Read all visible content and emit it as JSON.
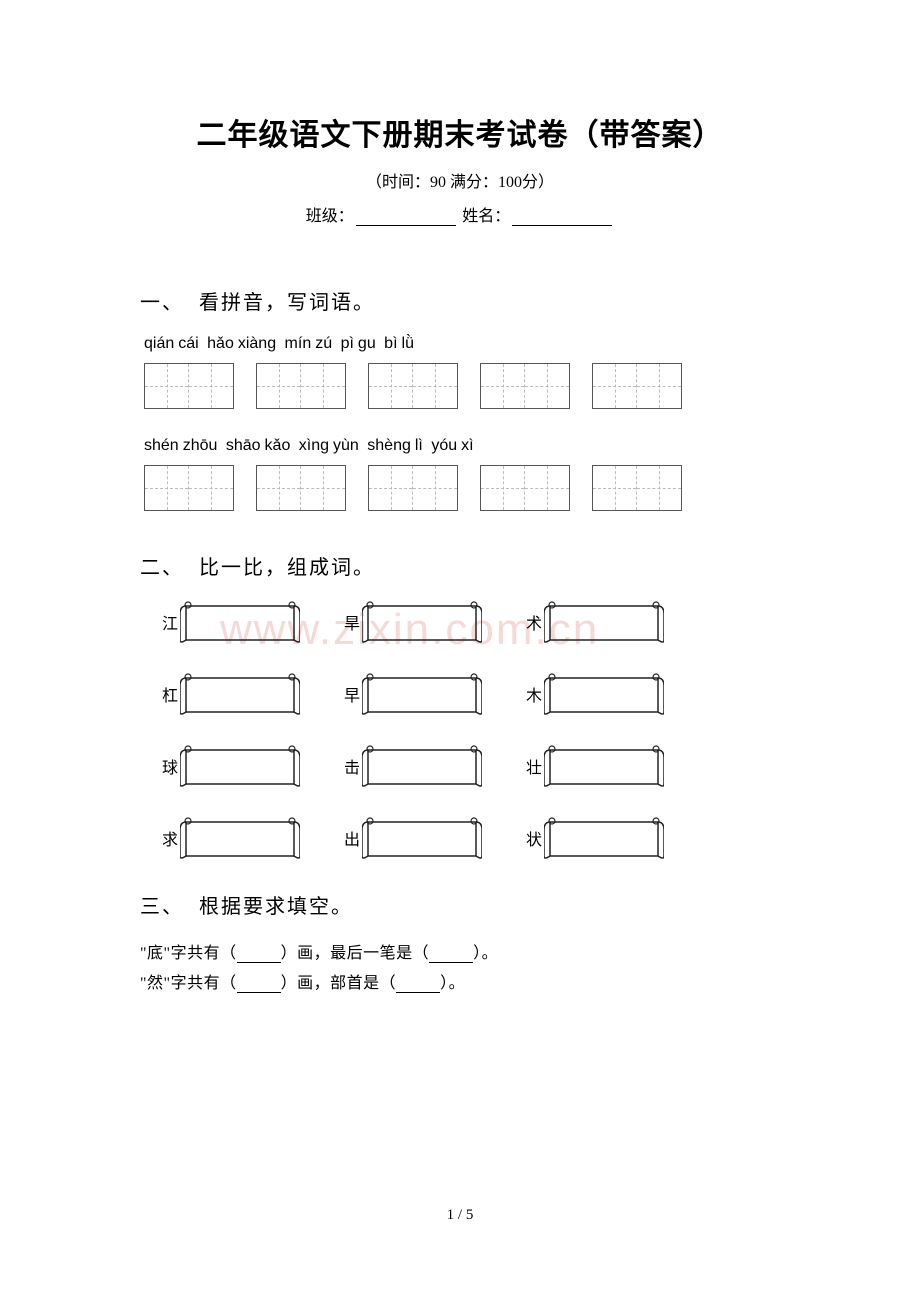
{
  "title": "二年级语文下册期末考试卷（带答案）",
  "subtitle_time_label": "（时间：",
  "subtitle_time_value": "90",
  "subtitle_score_label": "   满分：",
  "subtitle_score_value": "100分）",
  "class_label": "班级：",
  "name_label": " 姓名：",
  "watermark": "www.zixin.com.cn",
  "page_number": "1 / 5",
  "section1": {
    "num": "一、",
    "title": " 看拼音，写词语。",
    "row1_pinyin": [
      "qián",
      "cái",
      "  hǎo",
      "xiàng",
      "  mín",
      "zú",
      "  pì",
      "gu",
      "  bì",
      "lǜ"
    ],
    "row2_pinyin": [
      "shén",
      "zhōu",
      "  shāo",
      "kǎo",
      "  xìng",
      "yùn",
      "  shèng",
      "lì",
      "   yóu",
      "xì"
    ],
    "box_border_color": "#555555",
    "dash_color": "#bbbbbb"
  },
  "section2": {
    "num": "二、",
    "title": " 比一比，组成词。",
    "rows": [
      [
        "江",
        "旱",
        "术"
      ],
      [
        "杠",
        "早",
        "木"
      ],
      [
        "球",
        "击",
        "壮"
      ],
      [
        "求",
        "出",
        "状"
      ]
    ],
    "scroll_stroke": "#222222",
    "scroll_fill": "#ffffff"
  },
  "section3": {
    "num": "三、",
    "title": " 根据要求填空。",
    "q1_a": "\"底\"字共有（",
    "q1_b": "）画，最后一笔是（",
    "q1_c": "）。",
    "q2_a": "\"然\"字共有（",
    "q2_b": "）画，部首是（",
    "q2_c": "）。"
  },
  "colors": {
    "text": "#000000",
    "bg": "#ffffff",
    "watermark": "#f4d9d6"
  }
}
